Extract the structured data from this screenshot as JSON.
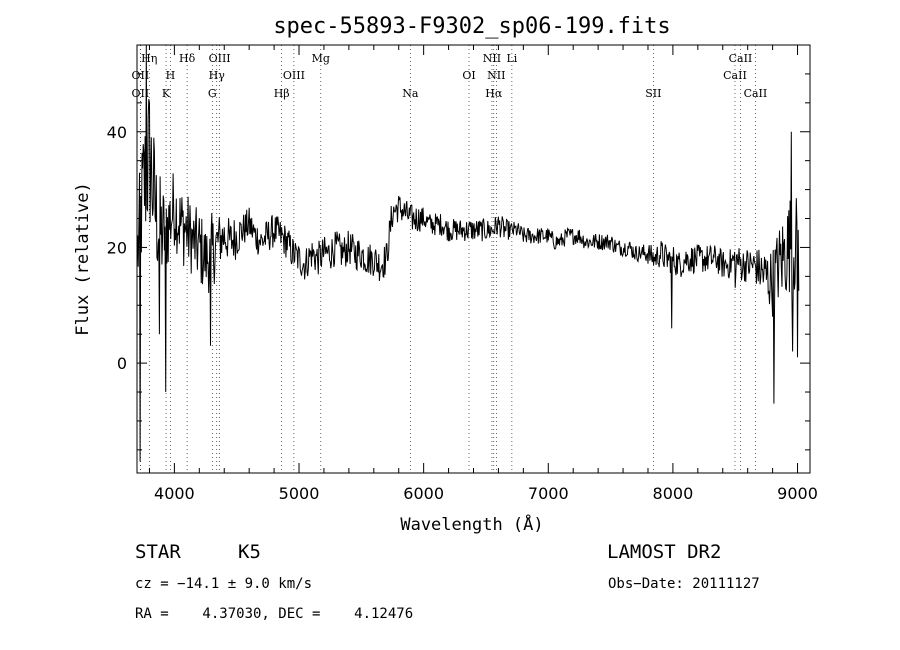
{
  "chart_data": {
    "type": "line",
    "title": "spec-55893-F9302_sp06-199.fits",
    "xlabel": "Wavelength (Å)",
    "ylabel": "Flux (relative)",
    "xlim": [
      3700,
      9100
    ],
    "ylim": [
      -19,
      55
    ],
    "x_ticks": [
      4000,
      5000,
      6000,
      7000,
      8000,
      9000
    ],
    "y_ticks": [
      0,
      20,
      40
    ],
    "spectrum": {
      "x": [
        3700,
        3750,
        3800,
        3850,
        3900,
        3950,
        4000,
        4050,
        4100,
        4150,
        4200,
        4250,
        4300,
        4350,
        4400,
        4450,
        4500,
        4550,
        4600,
        4650,
        4700,
        4750,
        4800,
        4850,
        4900,
        4950,
        5000,
        5050,
        5100,
        5150,
        5200,
        5250,
        5300,
        5350,
        5400,
        5450,
        5500,
        5550,
        5600,
        5650,
        5700,
        5750,
        5800,
        5850,
        5900,
        5950,
        6000,
        6050,
        6100,
        6150,
        6200,
        6250,
        6300,
        6350,
        6400,
        6450,
        6500,
        6550,
        6600,
        6650,
        6700,
        6750,
        6800,
        6850,
        6900,
        6950,
        7000,
        7050,
        7100,
        7150,
        7200,
        7250,
        7300,
        7350,
        7400,
        7450,
        7500,
        7550,
        7600,
        7650,
        7700,
        7750,
        7800,
        7850,
        7900,
        7950,
        8000,
        8050,
        8100,
        8150,
        8200,
        8250,
        8300,
        8350,
        8400,
        8450,
        8500,
        8550,
        8600,
        8650,
        8700,
        8750,
        8800,
        8850,
        8900,
        8950,
        9000
      ],
      "y": [
        18,
        30,
        36,
        26,
        22,
        24,
        27,
        24,
        23,
        21,
        20,
        18,
        19,
        21,
        22,
        21,
        22,
        23,
        24,
        22,
        21,
        22,
        23,
        22,
        21,
        19,
        18,
        17,
        19,
        18,
        19,
        19,
        20,
        19,
        20,
        19,
        19,
        18,
        18,
        17,
        18,
        26,
        27,
        26,
        25,
        25,
        25,
        24,
        24,
        24,
        23,
        23,
        23,
        23,
        23,
        23,
        23,
        23,
        24,
        23,
        23,
        23,
        22,
        22,
        22,
        22,
        22,
        21,
        21,
        22,
        22,
        22,
        21,
        21,
        21,
        21,
        21,
        20,
        20,
        20,
        19,
        19,
        19,
        18,
        19,
        18,
        18,
        17,
        18,
        18,
        18,
        18,
        18,
        18,
        17,
        17,
        18,
        17,
        17,
        17,
        16,
        15,
        14,
        17,
        19,
        21,
        20
      ],
      "noise": [
        9,
        12,
        14,
        11,
        9,
        8,
        7,
        7,
        7,
        6,
        7,
        6,
        7,
        5,
        4,
        4,
        4,
        3,
        3,
        3,
        3,
        3,
        3,
        3,
        3,
        3,
        3,
        3,
        3,
        3,
        3,
        3,
        3,
        3,
        3,
        3,
        3,
        3,
        3,
        3,
        3,
        3,
        2.5,
        2.5,
        2.5,
        2.5,
        2,
        2,
        2,
        2,
        2,
        2,
        2,
        2,
        2,
        2,
        2,
        2,
        2,
        2,
        1.5,
        1.5,
        1.5,
        1.5,
        1.5,
        1.5,
        1.5,
        1.5,
        1.5,
        1.5,
        1.5,
        1.5,
        1.5,
        1.5,
        1.5,
        1.5,
        1.5,
        1.5,
        1.5,
        1.5,
        1.5,
        1.5,
        2,
        2,
        2.5,
        2.5,
        2.5,
        2.5,
        2.5,
        2.5,
        2.5,
        2.5,
        2.5,
        2.5,
        2.5,
        2.5,
        3,
        3,
        3,
        3,
        4,
        5,
        6,
        7,
        8,
        9,
        9
      ]
    },
    "spikes": [
      {
        "x": 3725,
        "y": -17
      },
      {
        "x": 3775,
        "y": 55
      },
      {
        "x": 3800,
        "y": 45
      },
      {
        "x": 3880,
        "y": 5
      },
      {
        "x": 3930,
        "y": -5
      },
      {
        "x": 4290,
        "y": 3
      },
      {
        "x": 7990,
        "y": 6
      },
      {
        "x": 8500,
        "y": 13
      },
      {
        "x": 8810,
        "y": -7
      },
      {
        "x": 8950,
        "y": 40
      },
      {
        "x": 8960,
        "y": 2
      },
      {
        "x": 9000,
        "y": 1
      }
    ],
    "lines": [
      {
        "x": 3727,
        "label": "OII",
        "row": 2
      },
      {
        "x": 3727,
        "label": "OII",
        "row": 3
      },
      {
        "x": 3798,
        "label": "Hη",
        "row": 1
      },
      {
        "x": 3933,
        "label": "K",
        "row": 3
      },
      {
        "x": 3968,
        "label": "H",
        "row": 2
      },
      {
        "x": 4102,
        "label": "Hδ",
        "row": 1
      },
      {
        "x": 4304,
        "label": "G",
        "row": 3
      },
      {
        "x": 4340,
        "label": "Hγ",
        "row": 2
      },
      {
        "x": 4363,
        "label": "OIII",
        "row": 1
      },
      {
        "x": 4861,
        "label": "Hβ",
        "row": 3
      },
      {
        "x": 4959,
        "label": "OIII",
        "row": 2
      },
      {
        "x": 5175,
        "label": "Mg",
        "row": 1
      },
      {
        "x": 5893,
        "label": "Na",
        "row": 3
      },
      {
        "x": 6364,
        "label": "OI",
        "row": 2
      },
      {
        "x": 6548,
        "label": "NII",
        "row": 1
      },
      {
        "x": 6563,
        "label": "Hα",
        "row": 3
      },
      {
        "x": 6583,
        "label": "NII",
        "row": 2
      },
      {
        "x": 6708,
        "label": "Li",
        "row": 1
      },
      {
        "x": 7843,
        "label": "SII",
        "row": 3
      },
      {
        "x": 8498,
        "label": "CaII",
        "row": 2
      },
      {
        "x": 8542,
        "label": "CaII",
        "row": 1
      },
      {
        "x": 8662,
        "label": "CaII",
        "row": 3
      }
    ]
  },
  "info": {
    "object": "STAR",
    "subclass": "K5",
    "survey": "LAMOST DR2",
    "cz": "cz = −14.1 ± 9.0 km/s",
    "obs_date": "Obs−Date: 20111127",
    "coords": "RA =    4.37030, DEC =    4.12476"
  }
}
